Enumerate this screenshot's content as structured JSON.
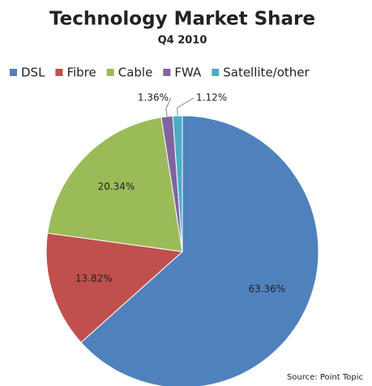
{
  "chart_data": {
    "type": "pie",
    "title": "Technology Market Share",
    "subtitle": "Q4 2010",
    "categories": [
      "DSL",
      "Fibre",
      "Cable",
      "FWA",
      "Satellite/other"
    ],
    "values": [
      63.36,
      13.82,
      20.34,
      1.36,
      1.12
    ],
    "value_labels": [
      "63.36%",
      "13.82%",
      "20.34%",
      "1.36%",
      "1.12%"
    ],
    "colors": [
      "#4f81bd",
      "#c0504d",
      "#9bbb59",
      "#8064a2",
      "#4bacc6"
    ],
    "legend": "top",
    "source": "Source: Point Topic"
  }
}
